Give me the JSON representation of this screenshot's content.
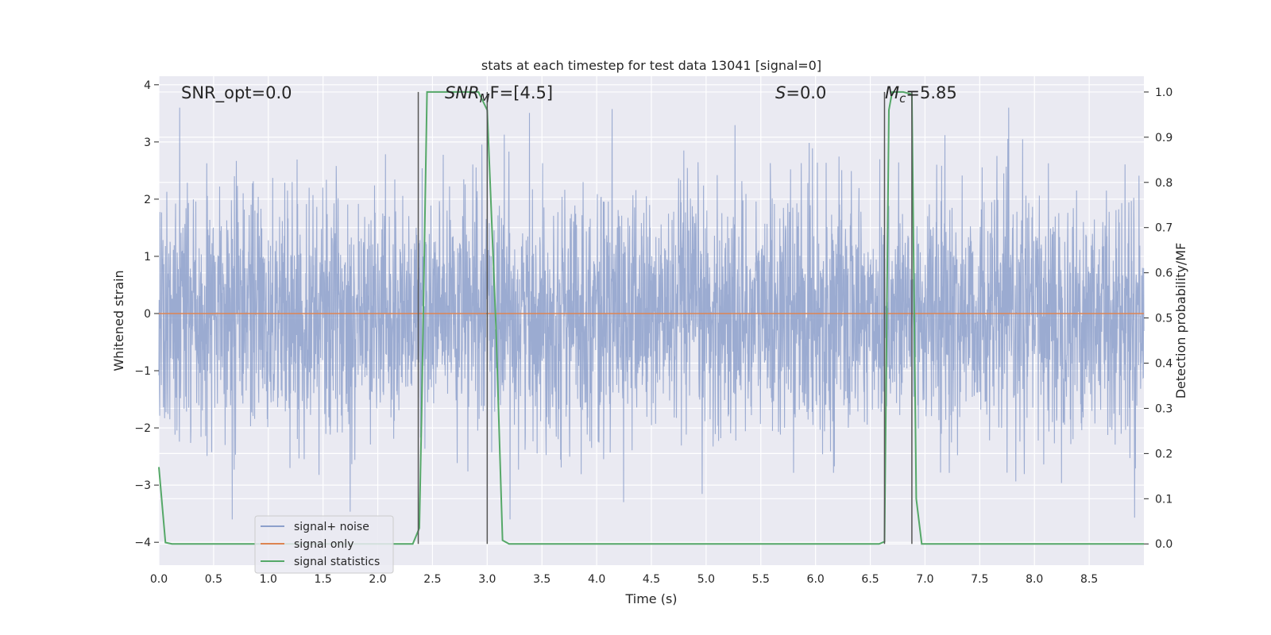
{
  "chart_data": {
    "type": "line",
    "title": "stats at each timestep for test data 13041 [signal=0]",
    "xlabel": "Time (s)",
    "ylabel": "Whitened strain",
    "y2label": "Detection probability/MF",
    "xlim": [
      0.0,
      9.0
    ],
    "ylim": [
      -4.4,
      4.15
    ],
    "y2lim": [
      -0.047,
      1.035
    ],
    "xticks": [
      "0.0",
      "0.5",
      "1.0",
      "1.5",
      "2.0",
      "2.5",
      "3.0",
      "3.5",
      "4.0",
      "4.5",
      "5.0",
      "5.5",
      "6.0",
      "6.5",
      "7.0",
      "7.5",
      "8.0",
      "8.5"
    ],
    "yticks": [
      "4",
      "3",
      "2",
      "1",
      "0",
      "−1",
      "−2",
      "−3",
      "−4"
    ],
    "y2ticks": [
      "1.0",
      "0.9",
      "0.8",
      "0.7",
      "0.6",
      "0.5",
      "0.4",
      "0.3",
      "0.2",
      "0.1",
      "0.0"
    ],
    "grid": true,
    "legend_position": "lower-left",
    "annotations": {
      "snr_opt": "SNR_opt=0.0",
      "snr_mf_main": "SNR",
      "snr_mf_sub": "M",
      "snr_mf_rest": "F=[4.5]",
      "s_main": "S",
      "s_rest": "=0.0",
      "mc_main": "M",
      "mc_sub": "c",
      "mc_rest": "=5.85"
    },
    "vertical_lines_x": [
      2.37,
      3.0,
      6.63,
      6.88
    ],
    "series": [
      {
        "name": "signal+ noise",
        "color": "#8da0cb",
        "description_of_values": "whitened noise, roughly gaussian between -3.5 and 3.6"
      },
      {
        "name": "signal only",
        "color": "#dd8452",
        "x": [
          0.0,
          9.0
        ],
        "values": [
          0.0,
          0.0
        ]
      },
      {
        "name": "signal statistics",
        "color": "#55a868",
        "axis": "right",
        "x": [
          0.0,
          0.06,
          0.12,
          0.5,
          1.0,
          1.5,
          2.0,
          2.32,
          2.38,
          2.4,
          2.45,
          2.6,
          2.8,
          2.92,
          3.0,
          3.08,
          3.14,
          3.2,
          3.5,
          4.0,
          5.0,
          6.0,
          6.58,
          6.63,
          6.67,
          6.7,
          6.8,
          6.88,
          6.92,
          6.97,
          7.05,
          7.5,
          8.0,
          8.5,
          9.0
        ],
        "values": [
          0.17,
          0.003,
          0.0,
          0.0,
          0.0,
          0.0,
          0.0,
          0.0,
          0.035,
          0.28,
          1.0,
          1.0,
          1.0,
          1.0,
          0.96,
          0.48,
          0.008,
          0.0,
          0.0,
          0.0,
          0.0,
          0.0,
          0.0,
          0.005,
          0.96,
          1.0,
          1.0,
          0.995,
          0.1,
          0.0,
          0.0,
          0.0,
          0.0,
          0.0,
          0.0
        ]
      }
    ]
  }
}
